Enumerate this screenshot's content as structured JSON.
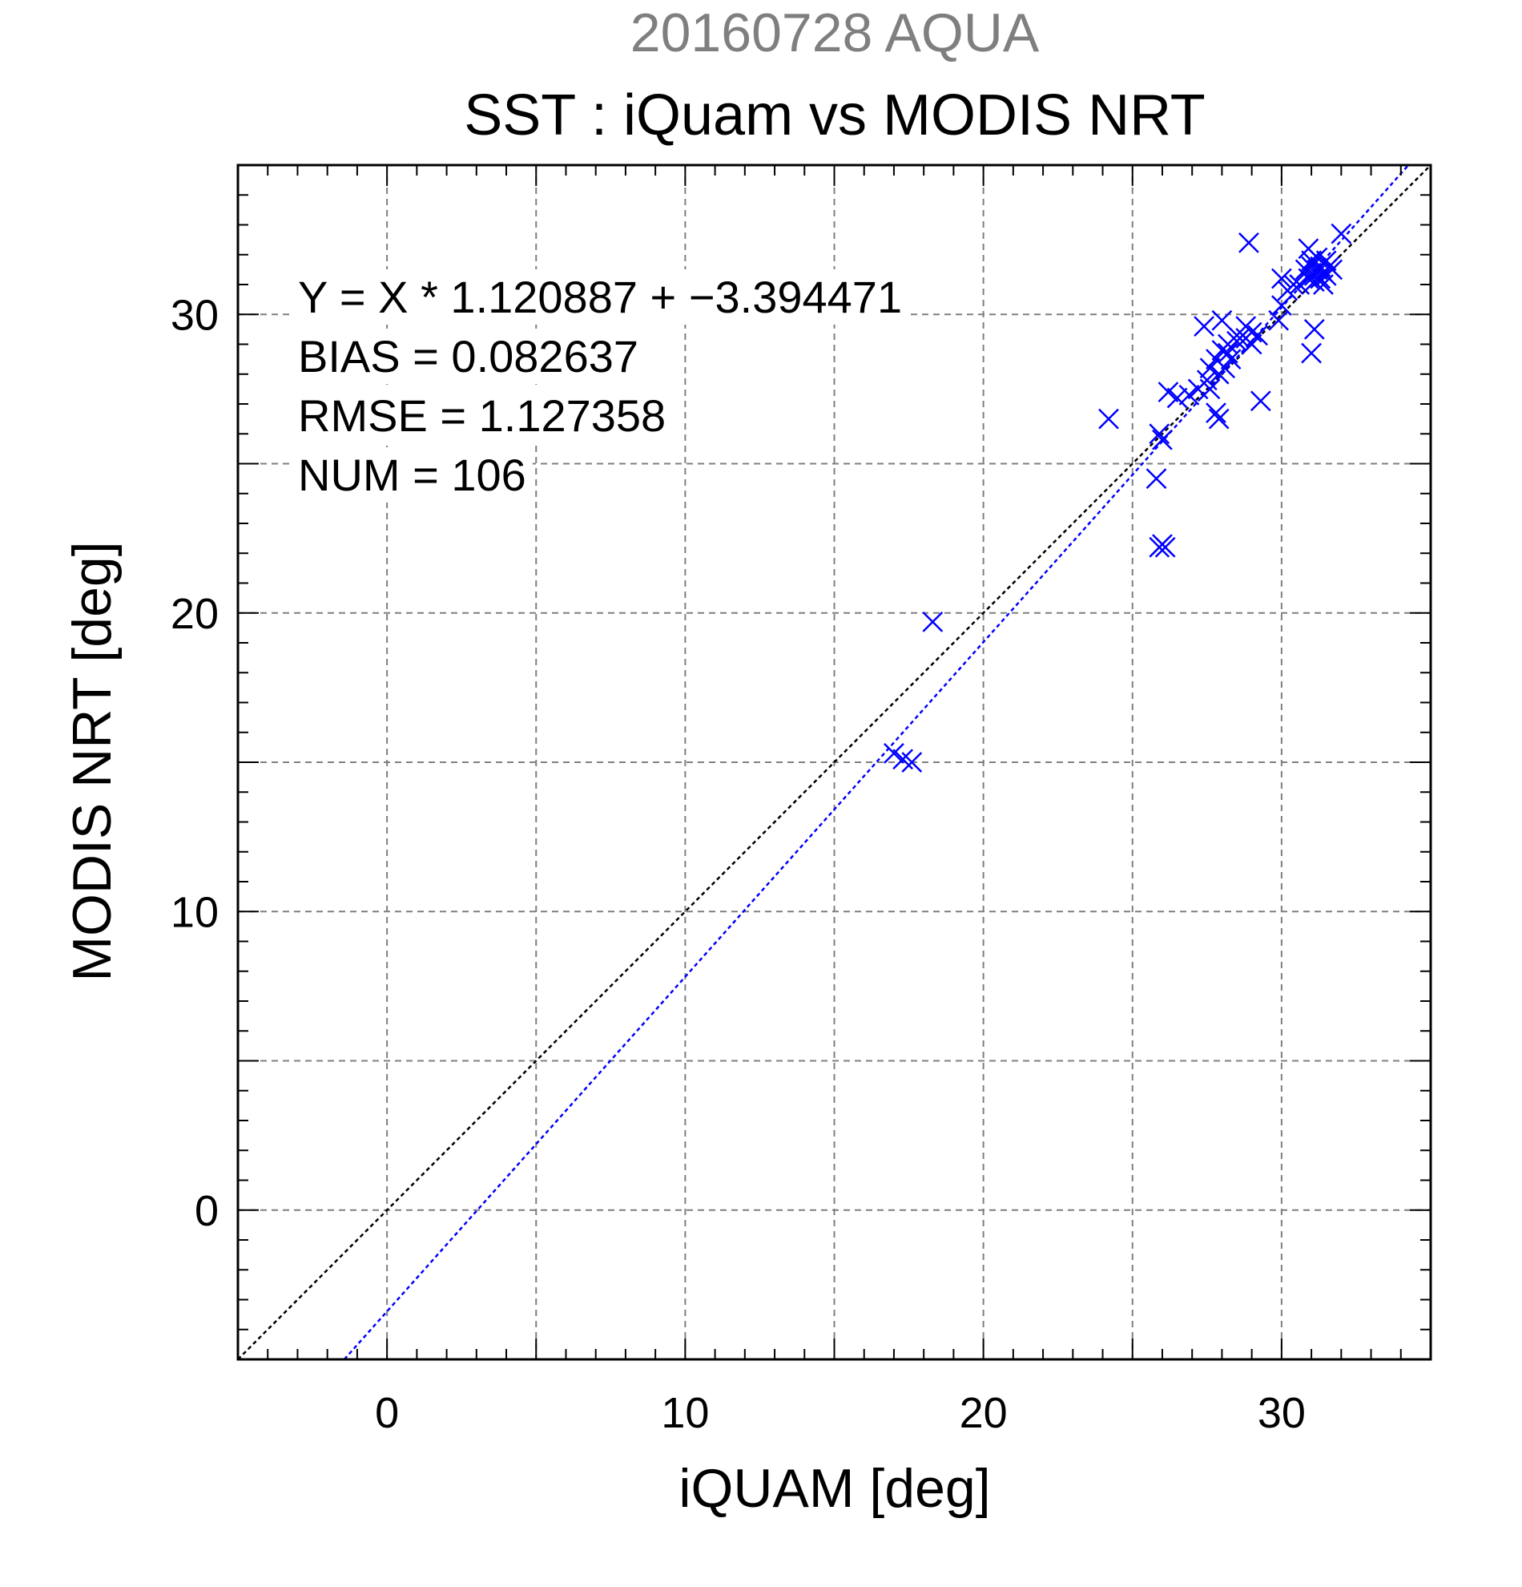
{
  "chart_data": {
    "type": "scatter",
    "suptitle": "20160728 AQUA",
    "title": "SST : iQuam vs MODIS NRT",
    "xlabel": "iQUAM [deg]",
    "ylabel": "MODIS NRT [deg]",
    "xlim": [
      -5,
      35
    ],
    "ylim": [
      -5,
      35
    ],
    "xticks": [
      0,
      10,
      20,
      30
    ],
    "yticks": [
      0,
      10,
      20,
      30
    ],
    "grid": true,
    "grid_step": 5,
    "stats": [
      "Y = X * 1.120887 + −3.394471",
      "BIAS = 0.082637",
      "RMSE = 1.127358",
      "NUM = 106"
    ],
    "lines": [
      {
        "role": "identity",
        "slope": 1.0,
        "intercept": 0.0,
        "color": "#000000"
      },
      {
        "role": "regression",
        "slope": 1.120887,
        "intercept": -3.394471,
        "color": "#0000ff"
      }
    ],
    "marker_color": "#0000ff",
    "points": [
      [
        17.0,
        15.3
      ],
      [
        17.3,
        15.1
      ],
      [
        17.6,
        15.0
      ],
      [
        18.3,
        19.7
      ],
      [
        24.2,
        26.5
      ],
      [
        25.8,
        24.5
      ],
      [
        25.9,
        26.0
      ],
      [
        26.0,
        25.8
      ],
      [
        25.9,
        22.2
      ],
      [
        26.0,
        22.3
      ],
      [
        26.1,
        22.2
      ],
      [
        26.2,
        27.4
      ],
      [
        26.5,
        27.2
      ],
      [
        26.9,
        27.3
      ],
      [
        27.2,
        27.5
      ],
      [
        27.4,
        29.6
      ],
      [
        27.5,
        27.8
      ],
      [
        27.6,
        27.5
      ],
      [
        27.6,
        28.2
      ],
      [
        27.8,
        26.7
      ],
      [
        27.8,
        28.5
      ],
      [
        27.9,
        26.5
      ],
      [
        27.9,
        28.0
      ],
      [
        28.0,
        29.8
      ],
      [
        28.0,
        28.8
      ],
      [
        28.1,
        28.2
      ],
      [
        28.2,
        28.7
      ],
      [
        28.2,
        29.0
      ],
      [
        28.3,
        28.5
      ],
      [
        28.5,
        29.1
      ],
      [
        28.6,
        29.2
      ],
      [
        28.8,
        29.6
      ],
      [
        28.8,
        29.2
      ],
      [
        29.0,
        29.0
      ],
      [
        29.0,
        29.4
      ],
      [
        29.2,
        29.3
      ],
      [
        28.9,
        32.4
      ],
      [
        29.3,
        27.1
      ],
      [
        29.9,
        29.8
      ],
      [
        30.0,
        30.3
      ],
      [
        30.0,
        31.2
      ],
      [
        30.2,
        30.8
      ],
      [
        30.4,
        31.0
      ],
      [
        30.6,
        31.0
      ],
      [
        30.8,
        31.5
      ],
      [
        30.9,
        32.2
      ],
      [
        30.9,
        31.2
      ],
      [
        31.0,
        31.6
      ],
      [
        31.0,
        31.8
      ],
      [
        31.1,
        31.3
      ],
      [
        31.1,
        31.1
      ],
      [
        31.1,
        29.5
      ],
      [
        31.0,
        28.7
      ],
      [
        31.2,
        31.5
      ],
      [
        31.2,
        31.9
      ],
      [
        31.3,
        31.2
      ],
      [
        31.3,
        31.6
      ],
      [
        31.4,
        31.4
      ],
      [
        31.4,
        31.0
      ],
      [
        31.5,
        31.8
      ],
      [
        31.5,
        31.3
      ],
      [
        31.6,
        31.6
      ],
      [
        31.7,
        31.5
      ],
      [
        32.0,
        32.7
      ]
    ]
  }
}
